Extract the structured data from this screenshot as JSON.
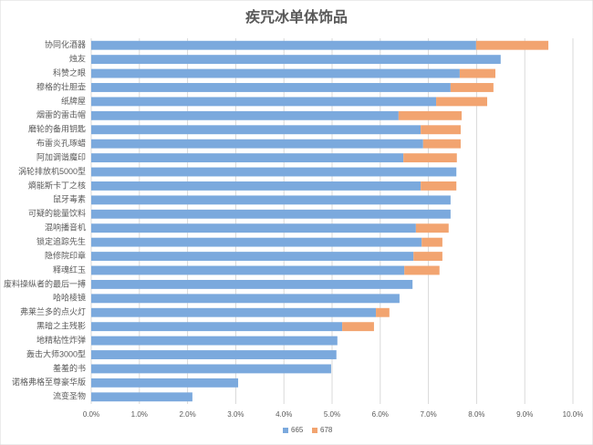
{
  "chart_data": {
    "type": "stacked-bar-horizontal",
    "title": "疾咒冰单体饰品",
    "categories": [
      "协同化酒器",
      "烛友",
      "科赞之眼",
      "穆格的壮胆壶",
      "纸牌屋",
      "烟雷的雷击帽",
      "磨轮的备用钥匙",
      "布雷炎孔琢蜡",
      "阿加调谐魔印",
      "涡轮排放机5000型",
      "熵能斯卡丁之核",
      "鼠牙毒素",
      "可疑的能量饮料",
      "混响播音机",
      "锁定追踪先生",
      "隐修院印章",
      "释魂红玉",
      "废料操纵者的最后一搏",
      "哈哈棱镜",
      "弗莱兰多的点火灯",
      "黑暗之主残影",
      "地精粘性炸弹",
      "轰击大师3000型",
      "羞羞的书",
      "诺格弗格至尊豪华版",
      "流变圣物"
    ],
    "series": [
      {
        "name": "665",
        "color": "#7ba9dd",
        "values": [
          7.99,
          8.5,
          7.65,
          7.46,
          7.16,
          6.38,
          6.84,
          6.89,
          6.48,
          7.58,
          6.84,
          7.46,
          7.46,
          6.74,
          6.86,
          6.69,
          6.5,
          6.67,
          6.4,
          5.91,
          5.21,
          5.11,
          5.09,
          4.98,
          3.05,
          2.1
        ]
      },
      {
        "name": "678",
        "color": "#f2a470",
        "values": [
          1.5,
          null,
          0.74,
          0.89,
          1.06,
          1.31,
          0.83,
          0.78,
          1.11,
          null,
          0.74,
          null,
          null,
          0.68,
          0.43,
          0.6,
          0.73,
          null,
          null,
          0.28,
          0.66,
          null,
          null,
          null,
          null,
          null
        ]
      }
    ],
    "xlim": [
      0,
      10
    ],
    "xticks": [
      {
        "value": 0,
        "label": "0.0%"
      },
      {
        "value": 1,
        "label": "1.0%"
      },
      {
        "value": 2,
        "label": "2.0%"
      },
      {
        "value": 3,
        "label": "3.0%"
      },
      {
        "value": 4,
        "label": "4.0%"
      },
      {
        "value": 5,
        "label": "5.0%"
      },
      {
        "value": 6,
        "label": "6.0%"
      },
      {
        "value": 7,
        "label": "7.0%"
      },
      {
        "value": 8,
        "label": "8.0%"
      },
      {
        "value": 9,
        "label": "9.0%"
      },
      {
        "value": 10,
        "label": "10.0%"
      }
    ],
    "grid": true,
    "legend": "bottom"
  }
}
